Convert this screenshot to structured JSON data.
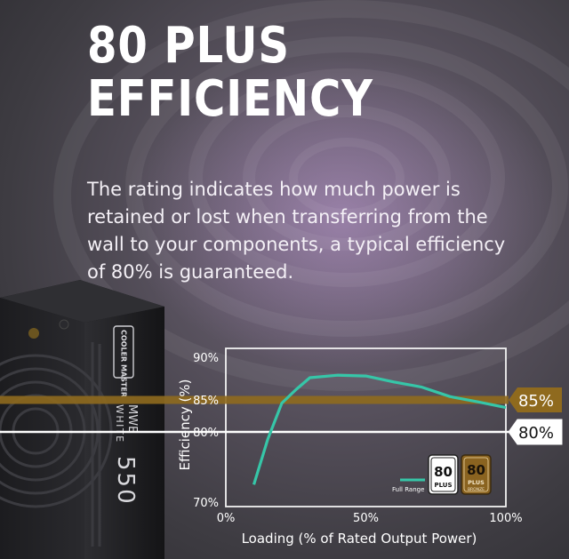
{
  "title_lines": [
    "80 PLUS",
    "EFFICIENCY"
  ],
  "description": "The rating indicates how much power is retained or lost when transferring from the wall to your components, a typical efficiency of 80% is guaranteed.",
  "product": {
    "brand_vertical": "COOLER MASTER",
    "model_lines": [
      "MWE",
      "WHITE"
    ],
    "model_number": "550"
  },
  "colors": {
    "curve": "#36c6a8",
    "bronze_band": "#8f6a1e",
    "white_line": "#ffffff"
  },
  "chart_data": {
    "type": "line",
    "title": "",
    "xlabel": "Loading (% of Rated Output Power)",
    "ylabel": "Efficiency (%)",
    "xlim": [
      0,
      100
    ],
    "ylim": [
      70,
      90
    ],
    "xticks": [
      "0%",
      "50%",
      "100%"
    ],
    "yticks": [
      "70%",
      "80%",
      "85%",
      "90%"
    ],
    "grid": false,
    "series": [
      {
        "name": "Full Range",
        "x": [
          10,
          15,
          20,
          25,
          30,
          40,
          50,
          60,
          70,
          80,
          90,
          100
        ],
        "y": [
          72.5,
          79.0,
          84.5,
          86.2,
          87.6,
          87.9,
          87.8,
          87.1,
          86.5,
          85.4,
          84.7,
          83.8
        ]
      }
    ],
    "thresholds": [
      {
        "label": "85%",
        "value": 85,
        "color": "#8f6a1e"
      },
      {
        "label": "80%",
        "value": 80,
        "color": "#ffffff"
      }
    ],
    "legend": {
      "position": "bottom-right",
      "label": "Full Range"
    },
    "badges": [
      {
        "top": "80",
        "bottom": "PLUS",
        "style": "white"
      },
      {
        "top": "80",
        "bottom": "PLUS",
        "sub": "BRONZE",
        "style": "bronze"
      }
    ]
  }
}
